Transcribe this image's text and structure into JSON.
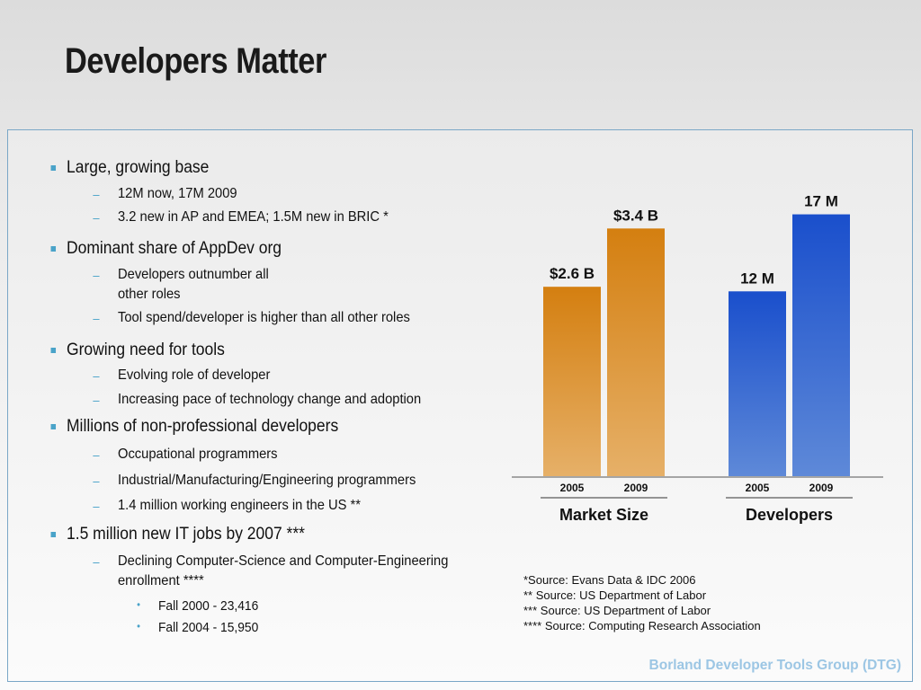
{
  "slide": {
    "title": "Developers Matter",
    "footer": "Borland Developer Tools Group (DTG)"
  },
  "bullets": {
    "b1_label": "Large, growing base",
    "b1_sub1": "12M now, 17M 2009",
    "b1_sub2": "3.2 new in AP and EMEA; 1.5M new in BRIC  *",
    "b2_label": "Dominant share of AppDev org",
    "b2_sub1_line1": "Developers outnumber all",
    "b2_sub1_line2": "other roles",
    "b2_sub2": "Tool spend/developer is higher than all other roles",
    "b3_label": "Growing need for tools",
    "b3_sub1": "Evolving role of developer",
    "b3_sub2": "Increasing pace of technology change and adoption",
    "b4_label": "Millions of non-professional developers",
    "b4_sub1": "Occupational programmers",
    "b4_sub2": "Industrial/Manufacturing/Engineering programmers",
    "b4_sub3": "1.4 million working engineers in the US  **",
    "b5_label": "1.5 million new IT jobs by 2007  ***",
    "b5_sub1_line1": "Declining Computer-Science and Computer-Engineering",
    "b5_sub1_line2": "enrollment  ****",
    "b5_sub1_item1": "Fall 2000 - 23,416",
    "b5_sub1_item2": "Fall 2004 - 15,950"
  },
  "sources": {
    "line1": "*Source: Evans Data & IDC 2006",
    "line2": "** Source:  US Department of Labor",
    "line3": "*** Source: US Department of Labor",
    "line4": "**** Source: Computing Research Association"
  },
  "colors": {
    "market_bar": "#d47f10",
    "market_bar_light": "#e6b068",
    "dev_bar": "#1a4fcc",
    "dev_bar_light": "#5e89d8",
    "bullet_marker": "#4aa3c9",
    "footer_text": "#9cc6e4",
    "panel_border": "#7aa7c7"
  },
  "chart_data": [
    {
      "type": "bar",
      "group_label": "Market Size",
      "categories": [
        "2005",
        "2009"
      ],
      "values": [
        2.6,
        3.4
      ],
      "data_labels": [
        "$2.6 B",
        "$3.4 B"
      ],
      "unit": "B",
      "ylim": [
        0,
        3.7
      ]
    },
    {
      "type": "bar",
      "group_label": "Developers",
      "categories": [
        "2005",
        "2009"
      ],
      "values": [
        12,
        17
      ],
      "data_labels": [
        "12 M",
        "17 M"
      ],
      "unit": "M",
      "ylim": [
        0,
        17.5
      ]
    }
  ]
}
